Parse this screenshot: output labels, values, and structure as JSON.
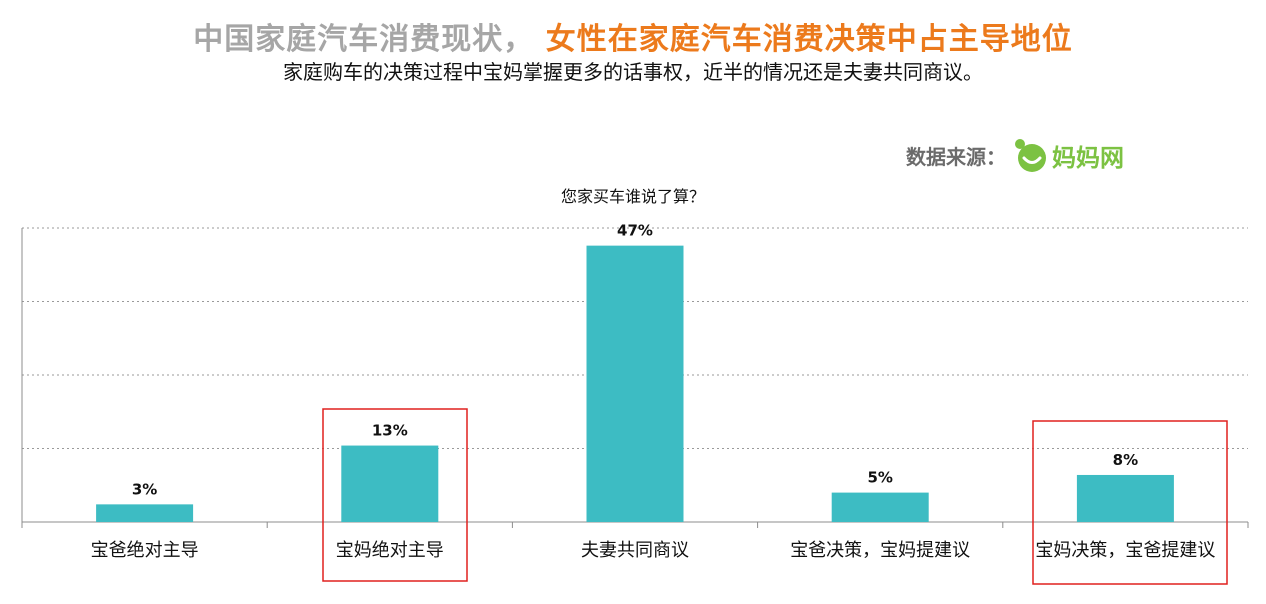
{
  "header": {
    "title_part1": "中国家庭汽车消费现状，",
    "title_part2": "女性在家庭汽车消费决策中占主导地位",
    "subtitle": "家庭购车的决策过程中宝妈掌握更多的话事权，近半的情况还是夫妻共同商议。"
  },
  "source": {
    "label": "数据来源：",
    "brand": "妈妈网",
    "brand_color": "#7cc242"
  },
  "chart_data": {
    "type": "bar",
    "title": "您家买车谁说了算？",
    "categories": [
      "宝爸绝对主导",
      "宝妈绝对主导",
      "夫妻共同商议",
      "宝爸决策，宝妈提建议",
      "宝妈决策，宝爸提建议"
    ],
    "values": [
      3,
      13,
      47,
      5,
      8
    ],
    "data_labels": [
      "3%",
      "13%",
      "47%",
      "5%",
      "8%"
    ],
    "unit": "%",
    "ylim": [
      0,
      50
    ],
    "grid": true,
    "bar_color": "#3dbcc3",
    "highlighted_categories": [
      1,
      4
    ],
    "highlight_color": "#e0201e"
  }
}
